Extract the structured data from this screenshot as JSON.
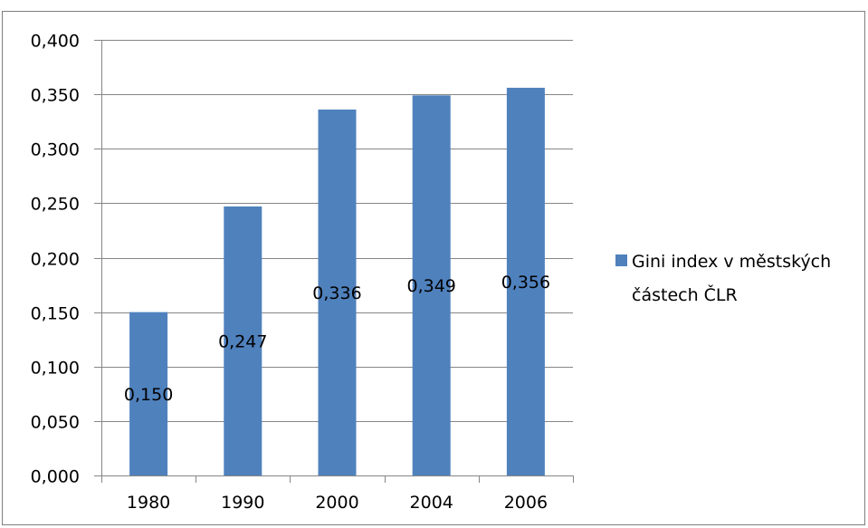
{
  "chart_data": {
    "type": "bar",
    "categories": [
      "1980",
      "1990",
      "2000",
      "2004",
      "2006"
    ],
    "series": [
      {
        "name": "Gini index v městských částech ČLR",
        "values": [
          0.15,
          0.247,
          0.336,
          0.349,
          0.356
        ],
        "data_labels": [
          "0,150",
          "0,247",
          "0,336",
          "0,349",
          "0,356"
        ],
        "color": "#4f81bd"
      }
    ],
    "ylim": [
      0,
      0.4
    ],
    "yticks": [
      0,
      0.05,
      0.1,
      0.15,
      0.2,
      0.25,
      0.3,
      0.35,
      0.4
    ],
    "ytick_labels": [
      "0,000",
      "0,050",
      "0,100",
      "0,150",
      "0,200",
      "0,250",
      "0,300",
      "0,350",
      "0,400"
    ],
    "grid": true,
    "legend": {
      "position": "right",
      "lines": [
        "Gini index v městských",
        "částech ČLR"
      ]
    },
    "colors": {
      "bar": "#4f81bd",
      "grid": "#868686",
      "frame": "#7f7f7f"
    }
  }
}
